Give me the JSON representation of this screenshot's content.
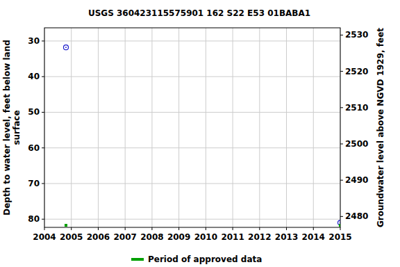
{
  "chart_data": {
    "type": "scatter",
    "title": "USGS 360423115575901 162  S22 E53 01BABA1",
    "y_label": [
      "Depth to water level, feet below land",
      "surface"
    ],
    "y2_label": "Groundwater level above NGVD 1929, feet",
    "xlim": [
      2004,
      2015
    ],
    "xticks": [
      2004,
      2005,
      2006,
      2007,
      2008,
      2009,
      2010,
      2011,
      2012,
      2013,
      2014,
      2015
    ],
    "ylim": [
      82.3,
      26.3
    ],
    "yticks": [
      30,
      40,
      50,
      60,
      70,
      80
    ],
    "y2lim": [
      2477,
      2532
    ],
    "y2ticks": [
      2480,
      2490,
      2500,
      2510,
      2520,
      2530
    ],
    "grid": true,
    "series": [
      {
        "color": "#1a1acc",
        "marker": "circle",
        "x": [
          2004.8,
          2015.0
        ],
        "values": [
          31.8,
          81.0
        ]
      }
    ],
    "approved_periods": {
      "name": "Period of approved data",
      "color": "#00a000",
      "x": [
        2004.8,
        2015.0
      ]
    }
  }
}
